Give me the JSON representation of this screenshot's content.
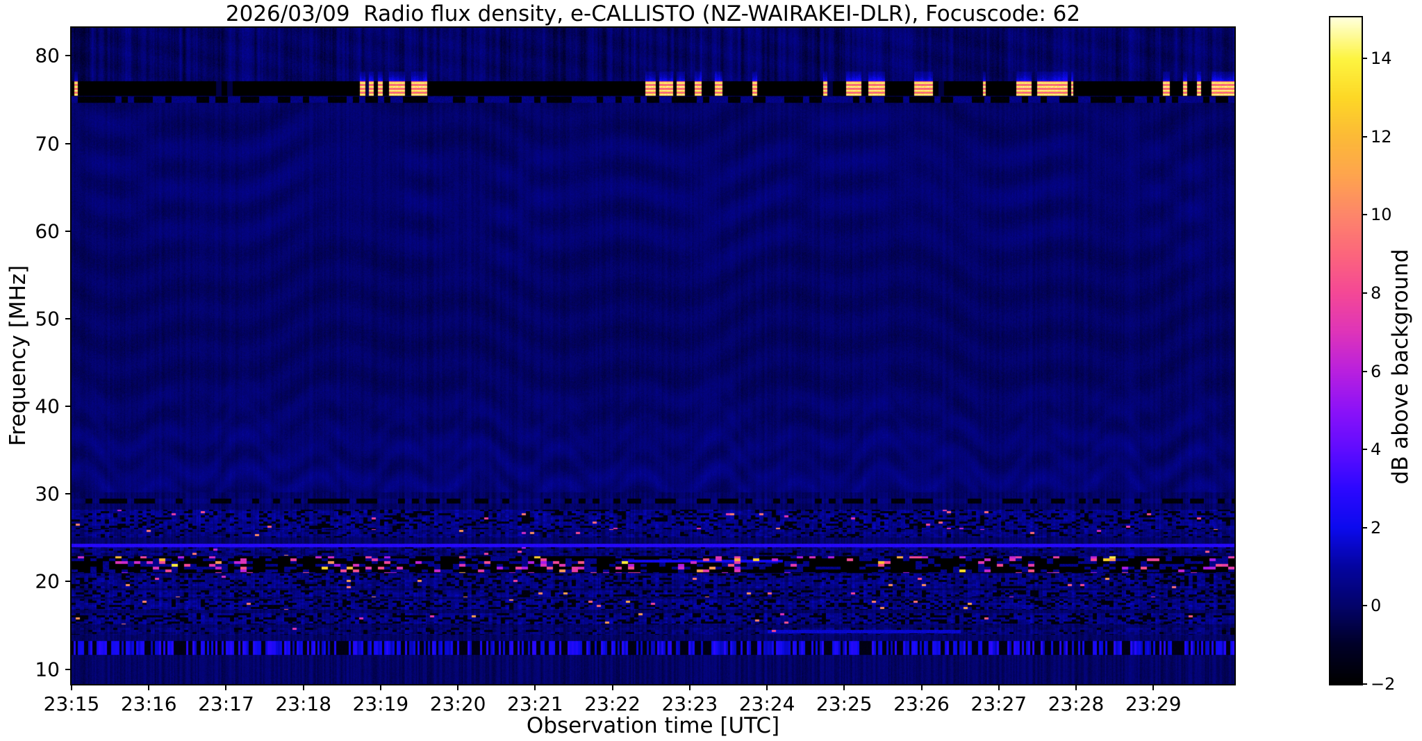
{
  "chart_data": {
    "type": "heatmap",
    "title": "2026/03/09  Radio flux density, e-CALLISTO (NZ-WAIRAKEI-DLR), Focuscode: 62",
    "xlabel": "Observation time [UTC]",
    "ylabel": "Frequency [MHz]",
    "colorbar_label": "dB above background",
    "x_axis": {
      "unit": "UTC time",
      "minutes_span": 15.05,
      "ticks": [
        {
          "minute": 0,
          "label": "23:15"
        },
        {
          "minute": 1,
          "label": "23:16"
        },
        {
          "minute": 2,
          "label": "23:17"
        },
        {
          "minute": 3,
          "label": "23:18"
        },
        {
          "minute": 4,
          "label": "23:19"
        },
        {
          "minute": 5,
          "label": "23:20"
        },
        {
          "minute": 6,
          "label": "23:21"
        },
        {
          "minute": 7,
          "label": "23:22"
        },
        {
          "minute": 8,
          "label": "23:23"
        },
        {
          "minute": 9,
          "label": "23:24"
        },
        {
          "minute": 10,
          "label": "23:25"
        },
        {
          "minute": 11,
          "label": "23:26"
        },
        {
          "minute": 12,
          "label": "23:27"
        },
        {
          "minute": 13,
          "label": "23:28"
        },
        {
          "minute": 14,
          "label": "23:29"
        }
      ]
    },
    "y_axis": {
      "min": 8.3,
      "max": 83.2,
      "ticks": [
        10,
        20,
        30,
        40,
        50,
        60,
        70,
        80
      ]
    },
    "colorbar": {
      "min": -2,
      "max": 15.05,
      "ticks": [
        {
          "v": -2,
          "label": "−2"
        },
        {
          "v": 0,
          "label": "0"
        },
        {
          "v": 2,
          "label": "2"
        },
        {
          "v": 4,
          "label": "4"
        },
        {
          "v": 6,
          "label": "6"
        },
        {
          "v": 8,
          "label": "8"
        },
        {
          "v": 10,
          "label": "10"
        },
        {
          "v": 12,
          "label": "12"
        },
        {
          "v": 14,
          "label": "14"
        }
      ]
    },
    "colormap_stops": [
      [
        -2,
        [
          0,
          0,
          0
        ]
      ],
      [
        -1,
        [
          0,
          0,
          40
        ]
      ],
      [
        0,
        [
          3,
          3,
          106
        ]
      ],
      [
        1,
        [
          4,
          4,
          160
        ]
      ],
      [
        2,
        [
          12,
          10,
          238
        ]
      ],
      [
        3,
        [
          45,
          8,
          255
        ]
      ],
      [
        4,
        [
          95,
          12,
          255
        ]
      ],
      [
        5,
        [
          140,
          18,
          248
        ]
      ],
      [
        6,
        [
          185,
          32,
          222
        ]
      ],
      [
        7,
        [
          222,
          52,
          185
        ]
      ],
      [
        8,
        [
          244,
          72,
          150
        ]
      ],
      [
        9,
        [
          252,
          102,
          124
        ]
      ],
      [
        10,
        [
          253,
          134,
          106
        ]
      ],
      [
        11,
        [
          254,
          164,
          78
        ]
      ],
      [
        12,
        [
          252,
          186,
          55
        ]
      ],
      [
        13,
        [
          253,
          216,
          38
        ]
      ],
      [
        14,
        [
          253,
          244,
          65
        ]
      ],
      [
        15,
        [
          255,
          255,
          212
        ]
      ]
    ],
    "spectrogram": {
      "background_value": -0.1,
      "rfi_band": {
        "f0": 75.4,
        "f1": 77.1,
        "blank_value": -2.6,
        "burst_peak_value": 15.0,
        "line_rel_positions": [
          0.1,
          0.36,
          0.62,
          0.88
        ],
        "dash_row": {
          "f0": 74.65,
          "f1": 75.35
        },
        "glow_top_f": 78.2,
        "burst_segments_min": [
          [
            0.03,
            0.08
          ],
          [
            3.73,
            3.8
          ],
          [
            3.84,
            3.91
          ],
          [
            3.96,
            4.02
          ],
          [
            4.1,
            4.31
          ],
          [
            4.39,
            4.6
          ],
          [
            7.42,
            7.56
          ],
          [
            7.6,
            7.78
          ],
          [
            7.83,
            7.93
          ],
          [
            8.06,
            8.15
          ],
          [
            8.32,
            8.42
          ],
          [
            8.81,
            8.87
          ],
          [
            9.72,
            9.78
          ],
          [
            10.02,
            10.22
          ],
          [
            10.31,
            10.52
          ],
          [
            10.9,
            11.14
          ],
          [
            11.79,
            11.83
          ],
          [
            12.22,
            12.42
          ],
          [
            12.49,
            12.89
          ],
          [
            12.93,
            12.96
          ],
          [
            14.12,
            14.21
          ],
          [
            14.38,
            14.43
          ],
          [
            14.56,
            14.61
          ],
          [
            14.75,
            15.05
          ]
        ]
      },
      "waves": {
        "arc_center_f": 30.6,
        "arc_spacing_f": 3.3,
        "arc_count": 4,
        "upper_center_f": 64.5,
        "ripple_amp": 0.16
      },
      "bands": [
        {
          "f0": 28.9,
          "f1": 29.5,
          "style": "dashrow",
          "seed": 11
        },
        {
          "f0": 26.0,
          "f1": 28.2,
          "style": "speckle",
          "black": 0.28,
          "dot": 0.01,
          "dotV": 6.0,
          "base": 0.5,
          "seed": 21
        },
        {
          "f0": 25.0,
          "f1": 26.0,
          "style": "speckle",
          "black": 0.14,
          "dot": 0.007,
          "dotV": 6.5,
          "base": 0.35,
          "seed": 31
        },
        {
          "f0": 23.0,
          "f1": 23.95,
          "style": "speckle",
          "black": 0.1,
          "dot": 0.004,
          "dotV": 6.0,
          "base": 0.25,
          "seed": 51
        },
        {
          "f0": 21.0,
          "f1": 22.85,
          "style": "darkband",
          "seed": 61
        },
        {
          "f0": 19.2,
          "f1": 20.9,
          "style": "speckle",
          "black": 0.22,
          "dot": 0.006,
          "dotV": 6.5,
          "base": 0.4,
          "seed": 71
        },
        {
          "f0": 18.2,
          "f1": 19.0,
          "style": "speckle",
          "black": 0.34,
          "dot": 0.007,
          "dotV": 7.0,
          "base": 0.45,
          "seed": 81
        },
        {
          "f0": 16.8,
          "f1": 18.0,
          "style": "speckle",
          "black": 0.3,
          "dot": 0.011,
          "dotV": 7.5,
          "base": 0.5,
          "seed": 91
        },
        {
          "f0": 15.1,
          "f1": 16.4,
          "style": "speckle",
          "black": 0.32,
          "dot": 0.009,
          "dotV": 6.5,
          "base": 0.45,
          "seed": 101
        },
        {
          "f0": 13.9,
          "f1": 14.7,
          "style": "speckle",
          "black": 0.12,
          "dot": 0.002,
          "dotV": 5.0,
          "base": 0.15,
          "seed": 111
        },
        {
          "f0": 11.6,
          "f1": 13.2,
          "style": "striation",
          "seed": 121
        }
      ],
      "lines": [
        {
          "f0": 23.95,
          "f1": 24.35,
          "t0": 0.0,
          "t1": 15.05,
          "v": 2.8
        },
        {
          "f0": 14.1,
          "f1": 14.5,
          "t0": 9.0,
          "t1": 11.5,
          "v": 1.6
        },
        {
          "f0": 22.15,
          "f1": 22.5,
          "t0": 7.2,
          "t1": 9.2,
          "v": 2.2
        }
      ]
    }
  }
}
